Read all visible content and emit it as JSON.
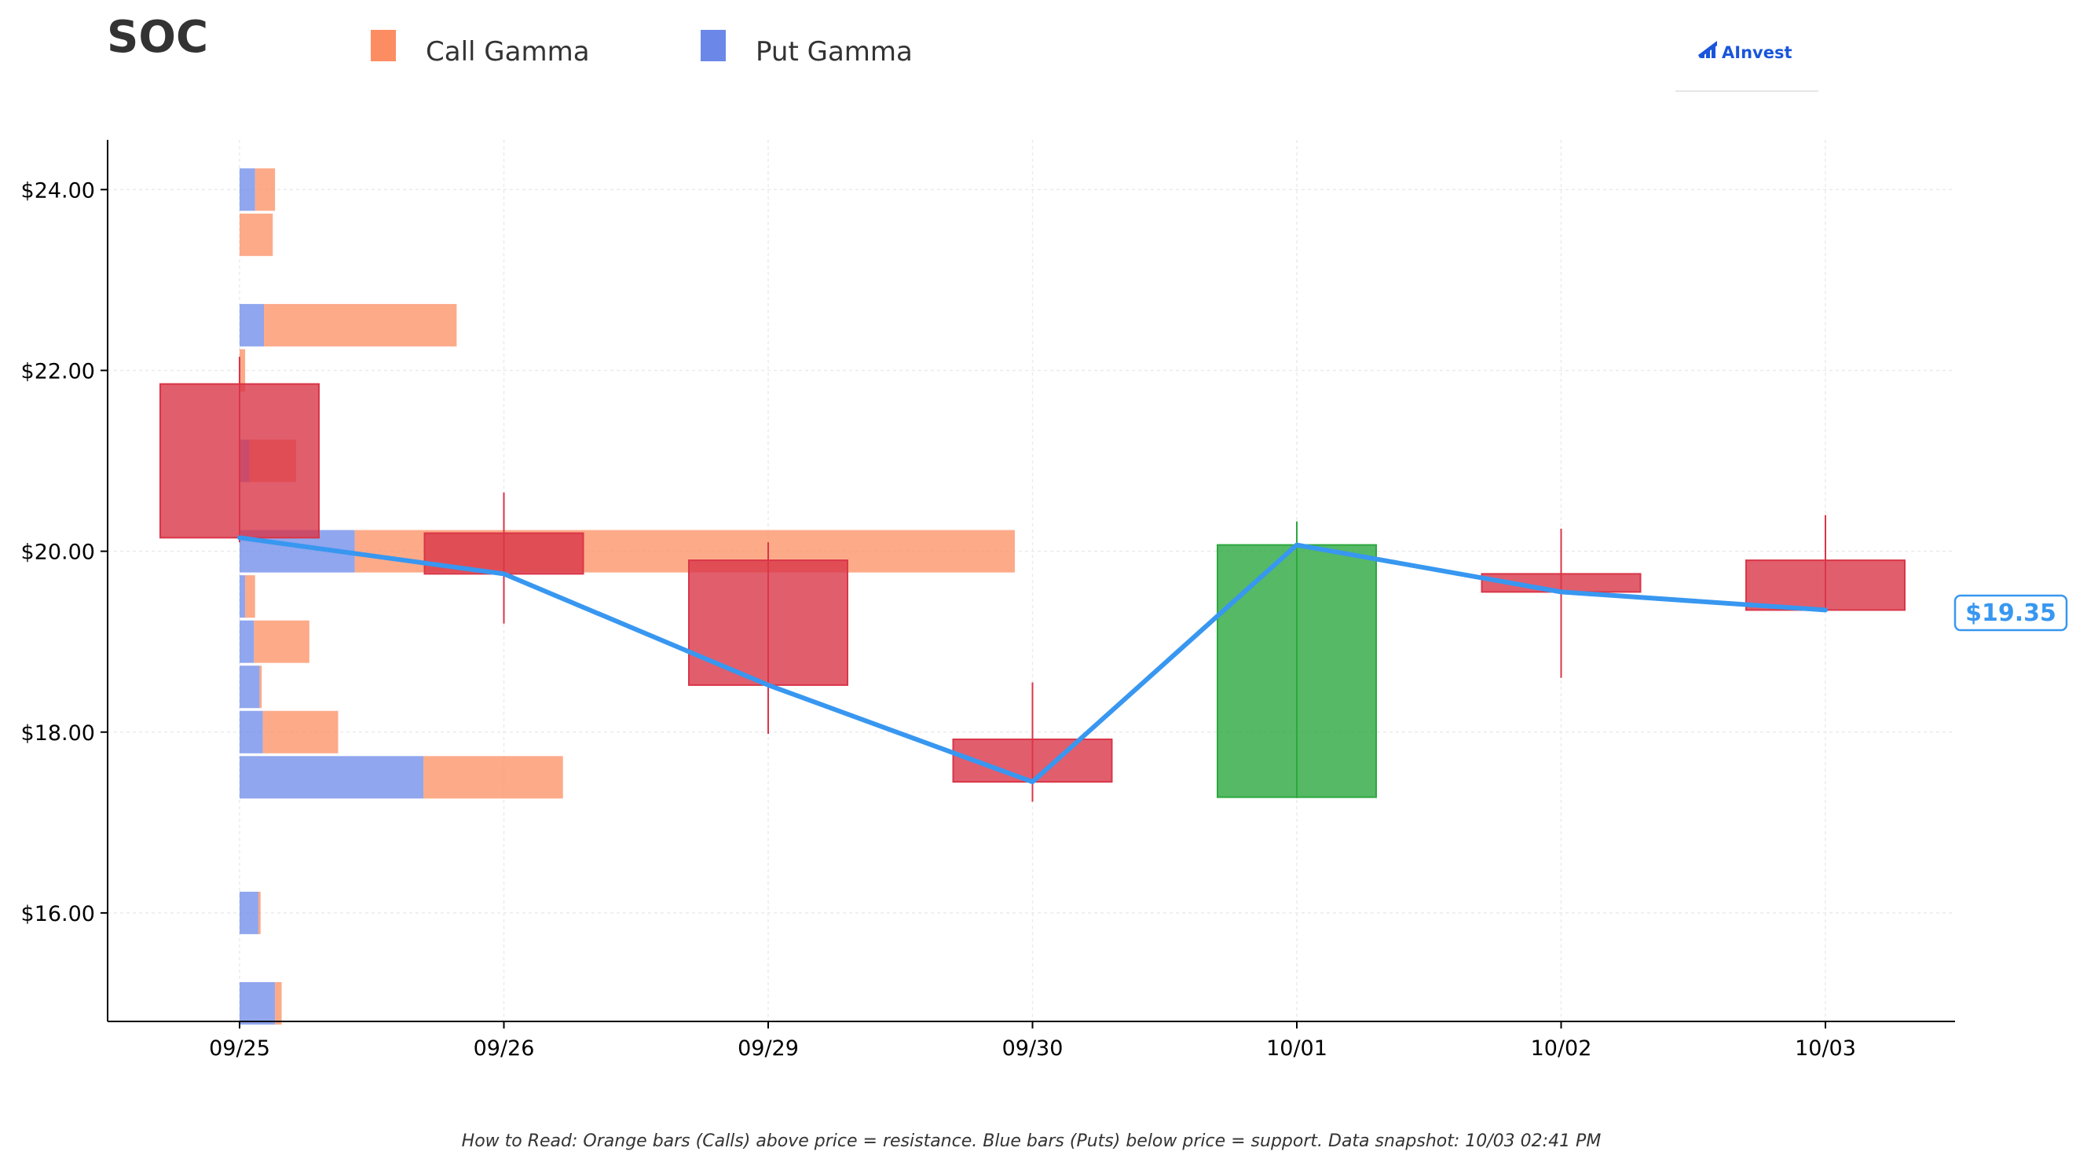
{
  "ticker": "SOC",
  "logo": {
    "text": "AInvest",
    "color": "#1a56db"
  },
  "legend": [
    {
      "label": "Call Gamma",
      "color": "#fc8d62"
    },
    {
      "label": "Put Gamma",
      "color": "#6b88e8"
    }
  ],
  "footer": "How to Read: Orange bars (Calls) above price = resistance. Blue bars (Puts) below price = support. Data snapshot: 10/03 02:41 PM",
  "price_label": "$19.35",
  "colors": {
    "call": "#fc8d62",
    "put": "#6b88e8",
    "up": "#2ca83e",
    "down": "#d93648",
    "price_line": "#3897f0"
  },
  "chart_data": {
    "type": "candlestick_with_gamma_profile",
    "title": "SOC",
    "x_categories": [
      "09/25",
      "09/26",
      "09/29",
      "09/30",
      "10/01",
      "10/02",
      "10/03"
    ],
    "y_ticks": [
      "$16.00",
      "$18.00",
      "$20.00",
      "$22.00",
      "$24.00"
    ],
    "y_tick_values": [
      16,
      18,
      20,
      22,
      24
    ],
    "ylim": [
      14.8,
      24.55
    ],
    "grid": true,
    "legend_position": "top",
    "candles": [
      {
        "date": "09/25",
        "open": 21.85,
        "close": 20.15,
        "high": 22.15,
        "low": 20.1
      },
      {
        "date": "09/26",
        "open": 20.2,
        "close": 19.75,
        "high": 20.65,
        "low": 19.2
      },
      {
        "date": "09/29",
        "open": 19.9,
        "close": 18.52,
        "high": 20.1,
        "low": 17.98
      },
      {
        "date": "09/30",
        "open": 17.92,
        "close": 17.45,
        "high": 18.55,
        "low": 17.23
      },
      {
        "date": "10/01",
        "open": 17.28,
        "close": 20.07,
        "high": 20.33,
        "low": 17.27
      },
      {
        "date": "10/02",
        "open": 19.75,
        "close": 19.55,
        "high": 20.25,
        "low": 18.6
      },
      {
        "date": "10/03",
        "open": 19.9,
        "close": 19.35,
        "high": 20.4,
        "low": 19.35
      }
    ],
    "close_line": [
      20.15,
      19.75,
      18.52,
      17.45,
      20.07,
      19.55,
      19.35
    ],
    "gamma_profile": [
      {
        "strike": 15.0,
        "put": 0.16,
        "call": 0.03
      },
      {
        "strike": 16.0,
        "put": 0.085,
        "call": 0.01
      },
      {
        "strike": 17.5,
        "put": 0.83,
        "call": 0.63
      },
      {
        "strike": 18.0,
        "put": 0.105,
        "call": 0.34
      },
      {
        "strike": 18.5,
        "put": 0.09,
        "call": 0.01
      },
      {
        "strike": 19.0,
        "put": 0.065,
        "call": 0.25
      },
      {
        "strike": 19.5,
        "put": 0.025,
        "call": 0.045
      },
      {
        "strike": 20.0,
        "put": 0.52,
        "call": 2.98
      },
      {
        "strike": 21.0,
        "put": 0.045,
        "call": 0.21
      },
      {
        "strike": 22.0,
        "put": 0.0,
        "call": 0.025
      },
      {
        "strike": 22.5,
        "put": 0.11,
        "call": 0.87
      },
      {
        "strike": 23.5,
        "put": 0.0,
        "call": 0.15
      },
      {
        "strike": 24.0,
        "put": 0.07,
        "call": 0.09
      }
    ]
  }
}
